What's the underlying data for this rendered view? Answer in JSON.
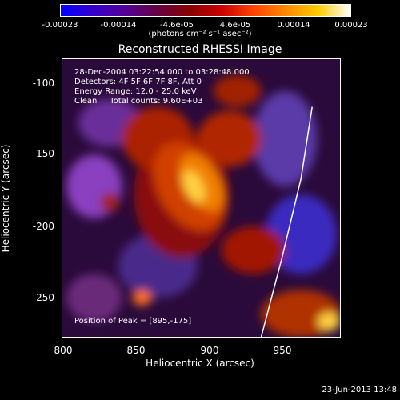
{
  "colorbar": {
    "tick_labels": [
      "-0.00023",
      "-0.00014",
      "-4.6e-05",
      "4.6e-05",
      "0.00014",
      "0.00023"
    ],
    "unit_label": "(photons cm⁻² s⁻¹ asec⁻²)",
    "colors": [
      "#0000ff",
      "#3300cc",
      "#550099",
      "#660044",
      "#880000",
      "#cc0000",
      "#ff4400",
      "#ff8800",
      "#ffcc00",
      "#ffffff"
    ]
  },
  "plot": {
    "title": "Reconstructed RHESSI Image",
    "xlabel": "Heliocentric X (arcsec)",
    "ylabel": "Heliocentric Y (arcsec)",
    "x_ticks": [
      "800",
      "850",
      "900",
      "950"
    ],
    "y_ticks": [
      "-100",
      "-150",
      "-200",
      "-250"
    ],
    "annotations": [
      "28-Dec-2004 03:22:54.000 to 03:28:48.000",
      "Detectors: 4F 5F 6F 7F 8F, Att 0",
      "Energy Range: 12.0 - 25.0 keV",
      "Clean     Total counts: 9.60E+03"
    ],
    "peak_label": "Position of Peak = [895,-175]"
  },
  "timestamp": "23-Jun-2013 13:48"
}
